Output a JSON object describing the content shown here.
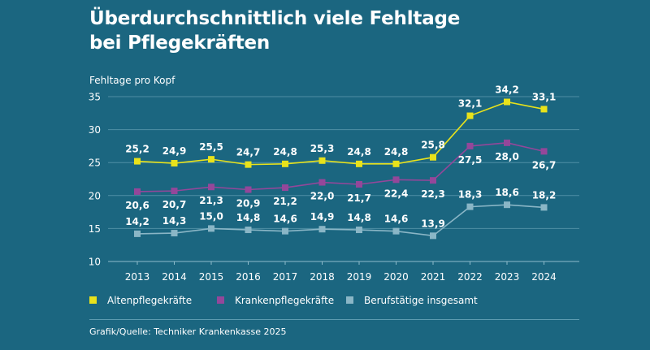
{
  "title_lines": [
    "Überdurchschnittlich viele Fehltage",
    "bei Pflegekräften"
  ],
  "source": "Grafik/Quelle: Techniker Krankenkasse 2025",
  "chart_data": {
    "type": "line",
    "title": "Überdurchschnittlich viele Fehltage bei Pflegekräften",
    "ylabel": "Fehltage pro Kopf",
    "xlabel": "",
    "ylim": [
      10,
      35
    ],
    "yticks": [
      10,
      15,
      20,
      25,
      30,
      35
    ],
    "categories": [
      "2013",
      "2014",
      "2015",
      "2016",
      "2017",
      "2018",
      "2019",
      "2020",
      "2021",
      "2022",
      "2023",
      "2024"
    ],
    "legend_position": "bottom",
    "series": [
      {
        "name": "Altenpflegekräfte",
        "color": "#e8e21b",
        "values": [
          25.2,
          24.9,
          25.5,
          24.7,
          24.8,
          25.3,
          24.8,
          24.8,
          25.8,
          32.1,
          34.2,
          33.1
        ],
        "labels": [
          "25,2",
          "24,9",
          "25,5",
          "24,7",
          "24,8",
          "25,3",
          "24,8",
          "24,8",
          "25,8",
          "32,1",
          "34,2",
          "33,1"
        ],
        "label_position": "above"
      },
      {
        "name": "Krankenpflegekräfte",
        "color": "#94479a",
        "values": [
          20.6,
          20.7,
          21.3,
          20.9,
          21.2,
          22.0,
          21.7,
          22.4,
          22.3,
          27.5,
          28.0,
          26.7
        ],
        "labels": [
          "20,6",
          "20,7",
          "21,3",
          "20,9",
          "21,2",
          "22,0",
          "21,7",
          "22,4",
          "22,3",
          "27,5",
          "28,0",
          "26,7"
        ],
        "label_position": "below"
      },
      {
        "name": "Berufstätige insgesamt",
        "color": "#8ab6c6",
        "values": [
          14.2,
          14.3,
          15.0,
          14.8,
          14.6,
          14.9,
          14.8,
          14.6,
          13.9,
          18.3,
          18.6,
          18.2
        ],
        "labels": [
          "14,2",
          "14,3",
          "15,0",
          "14,8",
          "14,6",
          "14,9",
          "14,8",
          "14,6",
          "13,9",
          "18,3",
          "18,6",
          "18,2"
        ],
        "label_position": "above"
      }
    ]
  }
}
